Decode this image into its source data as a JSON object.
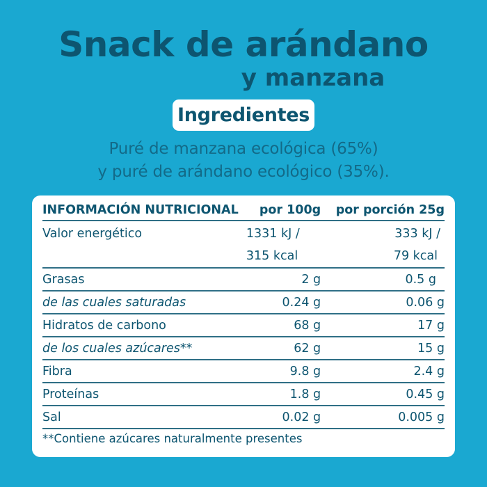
{
  "header": {
    "title": "Snack de arándano",
    "subtitle": "y manzana",
    "ingredients_label": "Ingredientes",
    "ingredients_line1": "Puré de manzana ecológica (65%)",
    "ingredients_line2": "y puré de arándano ecológico (35%)."
  },
  "colors": {
    "background": "#1aa8d1",
    "text": "#0d5570",
    "panel": "#ffffff"
  },
  "nutrition": {
    "headers": [
      "INFORMACIÓN NUTRICIONAL",
      "por 100g",
      "por porción 25g"
    ],
    "energy": {
      "label": "Valor energético",
      "per100_kj": "1331 kJ /",
      "per100_kcal": "315 kcal",
      "portion_kj": "333 kJ /",
      "portion_kcal": "79 kcal"
    },
    "rows": [
      {
        "label": "Grasas",
        "per100": "2 g",
        "portion": "0.5 g",
        "italic": false
      },
      {
        "label": "de las cuales saturadas",
        "per100": "0.24 g",
        "portion": "0.06 g",
        "italic": true
      },
      {
        "label": "Hidratos de carbono",
        "per100": "68 g",
        "portion": "17 g",
        "italic": false
      },
      {
        "label": "de los cuales azúcares**",
        "per100": "62 g",
        "portion": "15 g",
        "italic": true
      },
      {
        "label": "Fibra",
        "per100": "9.8 g",
        "portion": "2.4 g",
        "italic": false
      },
      {
        "label": "Proteínas",
        "per100": "1.8 g",
        "portion": "0.45 g",
        "italic": false
      },
      {
        "label": "Sal",
        "per100": "0.02 g",
        "portion": "0.005 g",
        "italic": false
      }
    ],
    "footnote": "**Contiene azúcares naturalmente presentes"
  }
}
